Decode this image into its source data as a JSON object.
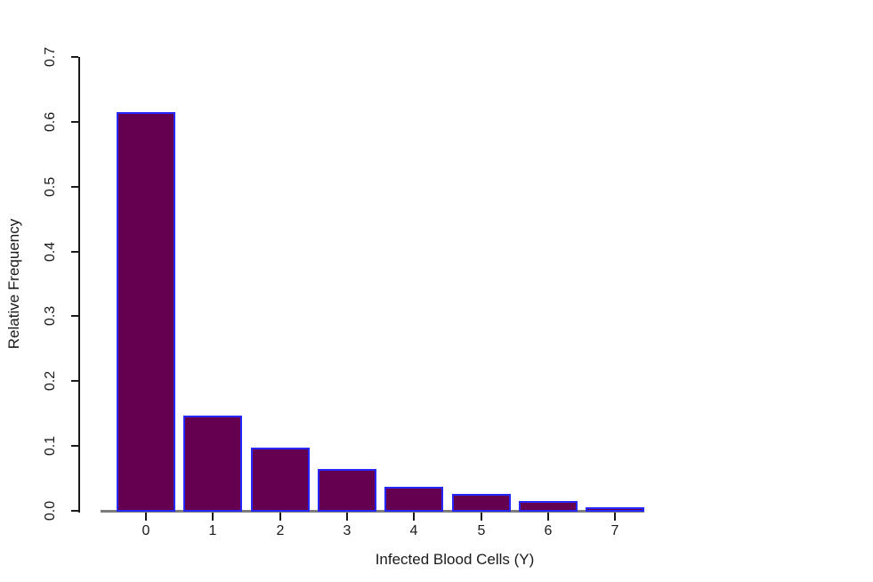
{
  "chart_data": {
    "type": "bar",
    "title": "",
    "xlabel": "Infected Blood Cells (Y)",
    "ylabel": "Relative Frequency",
    "categories": [
      "0",
      "1",
      "2",
      "3",
      "4",
      "5",
      "6",
      "7"
    ],
    "values": [
      0.615,
      0.147,
      0.098,
      0.064,
      0.037,
      0.026,
      0.015,
      0.005
    ],
    "ylim": [
      0,
      0.7
    ],
    "yticks": [
      0.0,
      0.1,
      0.2,
      0.3,
      0.4,
      0.5,
      0.6,
      0.7
    ],
    "ytick_labels": [
      "0.0",
      "0.1",
      "0.2",
      "0.3",
      "0.4",
      "0.5",
      "0.6",
      "0.7"
    ],
    "grid": false,
    "legend": null,
    "layout_hints": {
      "ytick_label_orientation": "rotated-90",
      "legend_position": "none"
    },
    "colors": {
      "bar_fill": "#650050",
      "bar_border": "#2727ff",
      "axis": "#1a1a1a",
      "baseline": "#7d7d7d",
      "background": "#ffffff"
    }
  }
}
